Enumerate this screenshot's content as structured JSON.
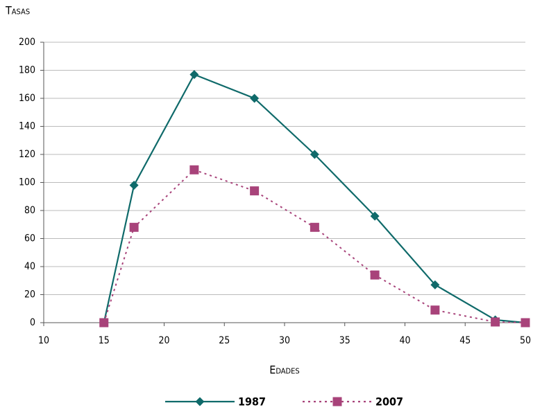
{
  "chart_data": {
    "type": "line",
    "y_label": "Tasas",
    "x_label": "Edades",
    "x": [
      15,
      17.5,
      22.5,
      27.5,
      32.5,
      37.5,
      42.5,
      47.5,
      50
    ],
    "series": [
      {
        "name": "1987",
        "color": "#0f6a6a",
        "marker": "diamond",
        "dash": false,
        "values": [
          0,
          98,
          177,
          160,
          120,
          76,
          27,
          2,
          0
        ]
      },
      {
        "name": "2007",
        "color": "#a8437a",
        "marker": "square",
        "dash": true,
        "values": [
          0,
          68,
          109,
          94,
          68,
          34,
          9,
          0.5,
          0
        ]
      }
    ],
    "xlim": [
      10,
      50
    ],
    "xticks": [
      10,
      15,
      20,
      25,
      30,
      35,
      40,
      45,
      50
    ],
    "ylim": [
      0,
      200
    ],
    "yticks": [
      0,
      20,
      40,
      60,
      80,
      100,
      120,
      140,
      160,
      180,
      200
    ],
    "grid": true
  }
}
